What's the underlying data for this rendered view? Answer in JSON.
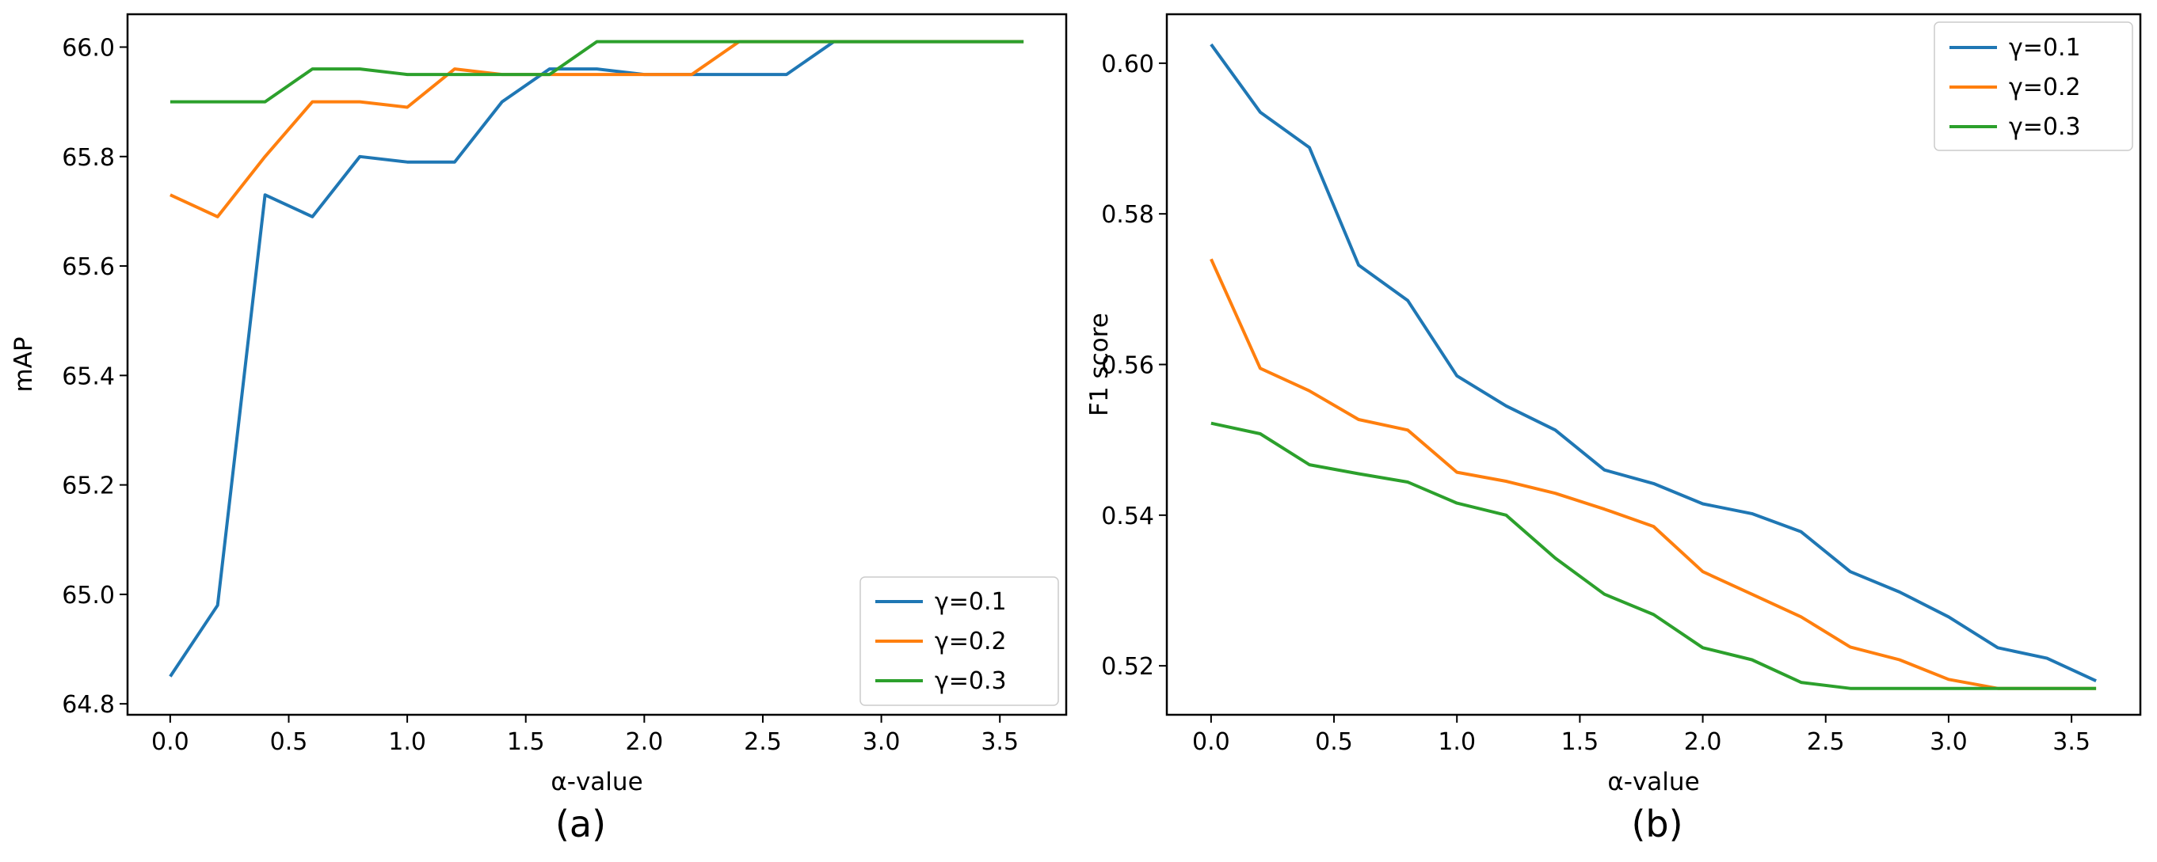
{
  "chart_data": [
    {
      "type": "line",
      "panel_label": "(a)",
      "xlabel": "α-value",
      "ylabel": "mAP",
      "xlim": [
        -0.18,
        3.78
      ],
      "ylim": [
        64.78,
        66.06
      ],
      "xticks": [
        0.0,
        0.5,
        1.0,
        1.5,
        2.0,
        2.5,
        3.0,
        3.5
      ],
      "xtick_labels": [
        "0.0",
        "0.5",
        "1.0",
        "1.5",
        "2.0",
        "2.5",
        "3.0",
        "3.5"
      ],
      "yticks": [
        64.8,
        65.0,
        65.2,
        65.4,
        65.6,
        65.8,
        66.0
      ],
      "ytick_labels": [
        "64.8",
        "65.0",
        "65.2",
        "65.4",
        "65.6",
        "65.8",
        "66.0"
      ],
      "legend_position": "lower-right",
      "grid": false,
      "x": [
        0.0,
        0.2,
        0.4,
        0.6,
        0.8,
        1.0,
        1.2,
        1.4,
        1.6,
        1.8,
        2.0,
        2.2,
        2.4,
        2.6,
        2.8,
        3.0,
        3.2,
        3.4,
        3.6
      ],
      "series": [
        {
          "name": "γ=0.1",
          "color": "#1f77b4",
          "values": [
            64.85,
            64.98,
            65.73,
            65.69,
            65.8,
            65.79,
            65.79,
            65.9,
            65.96,
            65.96,
            65.95,
            65.95,
            65.95,
            65.95,
            66.01,
            66.01,
            66.01,
            66.01,
            66.01
          ]
        },
        {
          "name": "γ=0.2",
          "color": "#ff7f0e",
          "values": [
            65.73,
            65.69,
            65.8,
            65.9,
            65.9,
            65.89,
            65.96,
            65.95,
            65.95,
            65.95,
            65.95,
            65.95,
            66.01,
            66.01,
            66.01,
            66.01,
            66.01,
            66.01,
            66.01
          ]
        },
        {
          "name": "γ=0.3",
          "color": "#2ca02c",
          "values": [
            65.9,
            65.9,
            65.9,
            65.96,
            65.96,
            65.95,
            65.95,
            65.95,
            65.95,
            66.01,
            66.01,
            66.01,
            66.01,
            66.01,
            66.01,
            66.01,
            66.01,
            66.01,
            66.01
          ]
        }
      ]
    },
    {
      "type": "line",
      "panel_label": "(b)",
      "xlabel": "α-value",
      "ylabel": "F1 score",
      "xlim": [
        -0.18,
        3.78
      ],
      "ylim": [
        0.5135,
        0.6065
      ],
      "xticks": [
        0.0,
        0.5,
        1.0,
        1.5,
        2.0,
        2.5,
        3.0,
        3.5
      ],
      "xtick_labels": [
        "0.0",
        "0.5",
        "1.0",
        "1.5",
        "2.0",
        "2.5",
        "3.0",
        "3.5"
      ],
      "yticks": [
        0.52,
        0.54,
        0.56,
        0.58,
        0.6
      ],
      "ytick_labels": [
        "0.52",
        "0.54",
        "0.56",
        "0.58",
        "0.60"
      ],
      "legend_position": "upper-right",
      "grid": false,
      "x": [
        0.0,
        0.2,
        0.4,
        0.6,
        0.8,
        1.0,
        1.2,
        1.4,
        1.6,
        1.8,
        2.0,
        2.2,
        2.4,
        2.6,
        2.8,
        3.0,
        3.2,
        3.4,
        3.6
      ],
      "series": [
        {
          "name": "γ=0.1",
          "color": "#1f77b4",
          "values": [
            0.6025,
            0.5935,
            0.5888,
            0.5732,
            0.5685,
            0.5585,
            0.5545,
            0.5513,
            0.546,
            0.5442,
            0.5415,
            0.5402,
            0.5378,
            0.5325,
            0.5298,
            0.5265,
            0.5224,
            0.521,
            0.518
          ]
        },
        {
          "name": "γ=0.2",
          "color": "#ff7f0e",
          "values": [
            0.574,
            0.5595,
            0.5565,
            0.5527,
            0.5513,
            0.5457,
            0.5445,
            0.5429,
            0.5408,
            0.5385,
            0.5325,
            0.5295,
            0.5265,
            0.5225,
            0.5208,
            0.5182,
            0.517,
            0.517,
            0.517
          ]
        },
        {
          "name": "γ=0.3",
          "color": "#2ca02c",
          "values": [
            0.5522,
            0.5508,
            0.5467,
            0.5455,
            0.5444,
            0.5416,
            0.54,
            0.5343,
            0.5295,
            0.5268,
            0.5224,
            0.5208,
            0.5178,
            0.517,
            0.517,
            0.517,
            0.517,
            0.517,
            0.517
          ]
        }
      ]
    }
  ]
}
